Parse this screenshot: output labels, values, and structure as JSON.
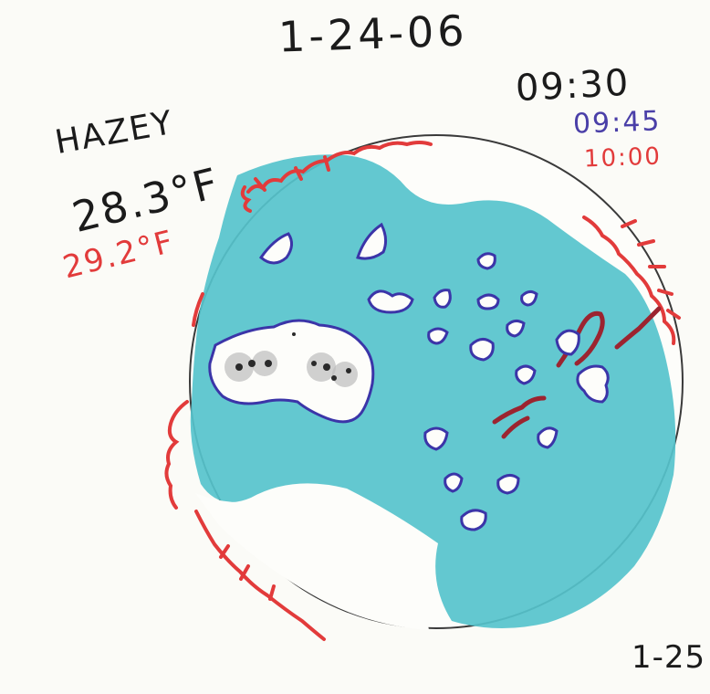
{
  "date": "1-24-06",
  "times": [
    {
      "text": "09:30",
      "color": "#1b1b1b"
    },
    {
      "text": "09:45",
      "color": "#4a3fa8"
    },
    {
      "text": "10:00",
      "color": "#e23b3b"
    }
  ],
  "sky": "HAZEY",
  "temperatures": [
    {
      "text": "28.3°F",
      "color": "#1b1b1b"
    },
    {
      "text": "29.2°F",
      "color": "#e23b3b"
    }
  ],
  "corner_note": "1-25",
  "colors": {
    "paper": "#fbfbf7",
    "plage": "#56c3cc",
    "region_outline": "#3b35a8",
    "prominence": "#e23b3b",
    "filament": "#9c2430",
    "disk_outline": "#3a3a3a",
    "sunspot": "#2a2a2a"
  }
}
